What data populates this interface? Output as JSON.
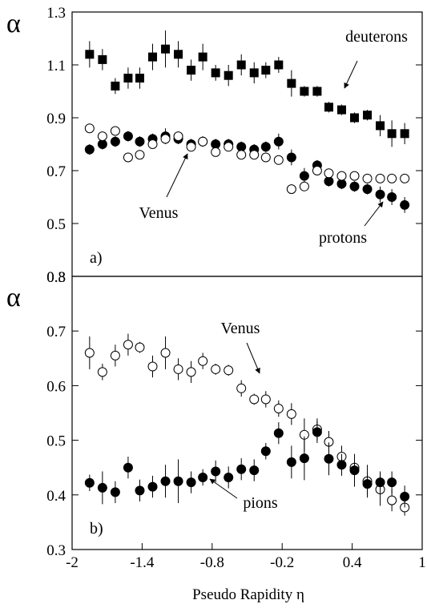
{
  "chart_data": [
    {
      "type": "scatter",
      "y_label": "α",
      "xlim": [
        -2,
        1
      ],
      "ylim": [
        0.3,
        1.3
      ],
      "yticks": [
        0.3,
        0.5,
        0.7,
        0.9,
        1.1,
        1.3
      ],
      "x": [
        -1.85,
        -1.74,
        -1.63,
        -1.52,
        -1.42,
        -1.31,
        -1.2,
        -1.09,
        -0.98,
        -0.88,
        -0.77,
        -0.66,
        -0.55,
        -0.44,
        -0.34,
        -0.23,
        -0.12,
        -0.01,
        0.1,
        0.2,
        0.31,
        0.42,
        0.53,
        0.64,
        0.74,
        0.85
      ],
      "series": [
        {
          "marker": "square",
          "color": "#000000",
          "values": [
            1.14,
            1.12,
            1.02,
            1.05,
            1.05,
            1.13,
            1.16,
            1.14,
            1.08,
            1.13,
            1.07,
            1.06,
            1.1,
            1.07,
            1.08,
            1.1,
            1.03,
            1.0,
            1.0,
            0.94,
            0.93,
            0.9,
            0.91,
            0.87,
            0.84,
            0.84
          ],
          "errors": [
            0.05,
            0.04,
            0.03,
            0.04,
            0.04,
            0.05,
            0.07,
            0.05,
            0.04,
            0.05,
            0.03,
            0.04,
            0.04,
            0.04,
            0.03,
            0.03,
            0.05,
            0.02,
            0.02,
            0.02,
            0.02,
            0.02,
            0.02,
            0.04,
            0.05,
            0.04
          ]
        },
        {
          "marker": "circle",
          "color": "#000000",
          "values": [
            0.78,
            0.8,
            0.81,
            0.83,
            0.81,
            0.82,
            0.83,
            0.82,
            0.8,
            0.81,
            0.8,
            0.8,
            0.79,
            0.78,
            0.79,
            0.81,
            0.75,
            0.68,
            0.72,
            0.66,
            0.65,
            0.64,
            0.63,
            0.61,
            0.6,
            0.57
          ],
          "errors": [
            0.02,
            0.02,
            0.02,
            0.02,
            0.02,
            0.02,
            0.03,
            0.02,
            0.02,
            0.02,
            0.02,
            0.02,
            0.02,
            0.02,
            0.02,
            0.03,
            0.03,
            0.03,
            0.02,
            0.02,
            0.02,
            0.02,
            0.02,
            0.03,
            0.03,
            0.03
          ]
        },
        {
          "marker": "open-circle",
          "color": "#000000",
          "values": [
            0.86,
            0.83,
            0.85,
            0.75,
            0.76,
            0.8,
            0.82,
            0.83,
            0.79,
            0.81,
            0.77,
            0.79,
            0.76,
            0.76,
            0.75,
            0.74,
            0.63,
            0.64,
            0.7,
            0.69,
            0.68,
            0.68,
            0.67,
            0.67,
            0.67,
            0.67
          ],
          "errors": [
            0.01,
            0.01,
            0.01,
            0.01,
            0.01,
            0.01,
            0.01,
            0.01,
            0.01,
            0.01,
            0.01,
            0.01,
            0.01,
            0.01,
            0.01,
            0.01,
            0.01,
            0.01,
            0.01,
            0.01,
            0.01,
            0.01,
            0.01,
            0.01,
            0.01,
            0.01
          ]
        }
      ],
      "annotations": [
        "deuterons",
        "Venus",
        "protons",
        "a)"
      ]
    },
    {
      "type": "scatter",
      "y_label": "α",
      "x_label": "Pseudo Rapidity η",
      "xlim": [
        -2,
        1
      ],
      "xticks": [
        -2,
        -1.4,
        -0.8,
        -0.2,
        0.4,
        1
      ],
      "ylim": [
        0.3,
        0.8
      ],
      "yticks": [
        0.3,
        0.4,
        0.5,
        0.6,
        0.7,
        0.8
      ],
      "x": [
        -1.85,
        -1.74,
        -1.63,
        -1.52,
        -1.42,
        -1.31,
        -1.2,
        -1.09,
        -0.98,
        -0.88,
        -0.77,
        -0.66,
        -0.55,
        -0.44,
        -0.34,
        -0.23,
        -0.12,
        -0.01,
        0.1,
        0.2,
        0.31,
        0.42,
        0.53,
        0.64,
        0.74,
        0.85
      ],
      "series": [
        {
          "marker": "open-circle",
          "color": "#000000",
          "values": [
            0.66,
            0.625,
            0.655,
            0.675,
            0.67,
            0.635,
            0.66,
            0.63,
            0.625,
            0.645,
            0.63,
            0.628,
            0.595,
            0.575,
            0.575,
            0.558,
            0.548,
            0.51,
            0.52,
            0.497,
            0.47,
            0.45,
            0.425,
            0.41,
            0.39,
            0.377
          ],
          "errors": [
            0.03,
            0.015,
            0.02,
            0.02,
            0.01,
            0.02,
            0.03,
            0.02,
            0.02,
            0.015,
            0.01,
            0.01,
            0.015,
            0.01,
            0.015,
            0.015,
            0.02,
            0.03,
            0.02,
            0.02,
            0.02,
            0.02,
            0.03,
            0.03,
            0.02,
            0.015
          ]
        },
        {
          "marker": "circle",
          "color": "#000000",
          "values": [
            0.422,
            0.413,
            0.405,
            0.45,
            0.408,
            0.415,
            0.425,
            0.425,
            0.423,
            0.432,
            0.443,
            0.432,
            0.447,
            0.445,
            0.48,
            0.513,
            0.46,
            0.467,
            0.515,
            0.466,
            0.455,
            0.445,
            0.42,
            0.423,
            0.423,
            0.397
          ],
          "errors": [
            0.015,
            0.03,
            0.02,
            0.02,
            0.02,
            0.02,
            0.03,
            0.04,
            0.02,
            0.015,
            0.02,
            0.02,
            0.02,
            0.02,
            0.015,
            0.02,
            0.03,
            0.04,
            0.02,
            0.03,
            0.02,
            0.03,
            0.02,
            0.02,
            0.02,
            0.02
          ]
        }
      ],
      "annotations": [
        "Venus",
        "pions",
        "b)"
      ]
    }
  ]
}
